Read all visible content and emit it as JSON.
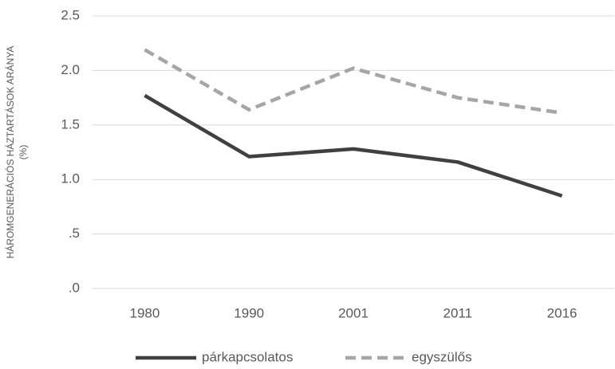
{
  "chart_data": {
    "type": "line",
    "ylabel": [
      "HÁROMGENERÁCIÓS HÁZTARTÁSOK ARÁNYA",
      "(%)"
    ],
    "categories": [
      "1980",
      "1990",
      "2001",
      "2011",
      "2016"
    ],
    "series": [
      {
        "name": "párkapcsolatos",
        "color": "#404040",
        "dashed": false,
        "values": [
          1.77,
          1.21,
          1.28,
          1.16,
          0.85
        ]
      },
      {
        "name": "egyszülős",
        "color": "#a6a6a6",
        "dashed": true,
        "values": [
          2.19,
          1.64,
          2.02,
          1.75,
          1.61
        ]
      }
    ],
    "ylim": [
      0,
      2.5
    ],
    "yticks": [
      {
        "value": 0,
        "label": ".0"
      },
      {
        "value": 0.5,
        "label": ".5"
      },
      {
        "value": 1,
        "label": "1.0"
      },
      1.5,
      {
        "value": 2,
        "label": "2.0"
      },
      2.5
    ],
    "grid": true,
    "legend": "bottom"
  }
}
